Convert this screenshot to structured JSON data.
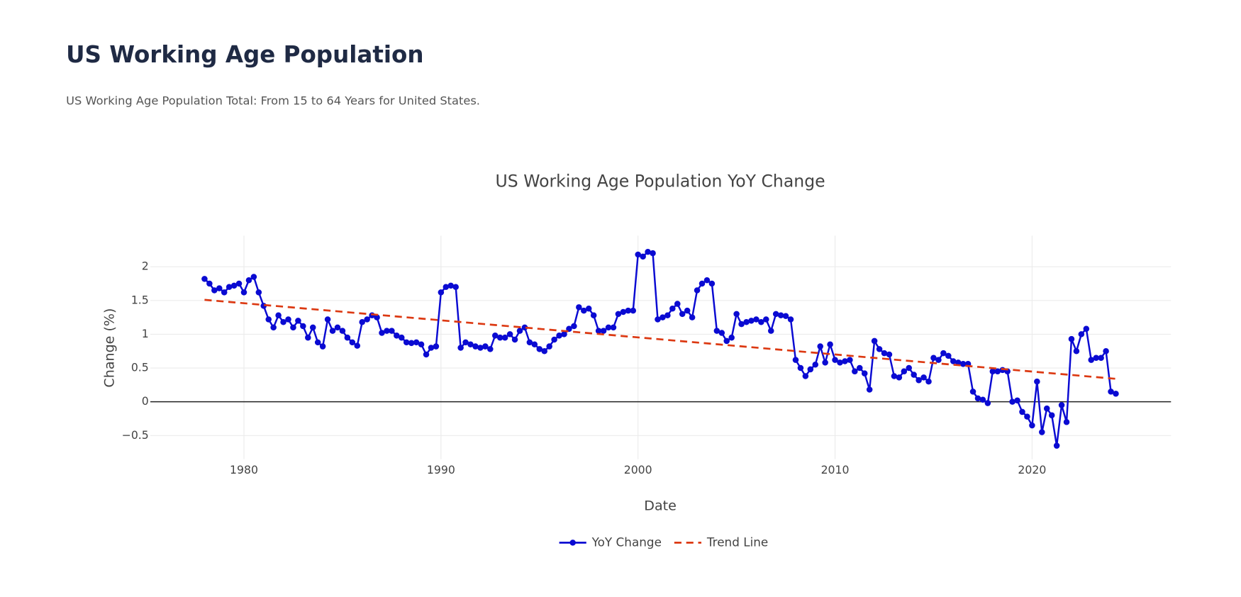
{
  "header": {
    "title": "US Working Age Population",
    "subtitle": "US Working Age Population Total: From 15 to 64 Years for United States."
  },
  "chart_data": {
    "type": "line",
    "title": "US Working Age Population YoY Change",
    "x_label": "Date",
    "y_label": "Change (%)",
    "xlim": [
      1975.25,
      2027.05
    ],
    "ylim": [
      -0.85,
      2.46
    ],
    "xticks": [
      1980,
      1990,
      2000,
      2010,
      2020
    ],
    "yticks": [
      {
        "value": -0.5,
        "label": "−0.5"
      },
      0,
      0.5,
      1,
      1.5,
      2
    ],
    "grid": true,
    "zeroline": true,
    "legend": "bottom",
    "series": [
      {
        "name": "YoY Change",
        "color": "#0a0ad2",
        "markers": true,
        "x": [
          1978,
          1978.25,
          1978.5,
          1978.75,
          1979,
          1979.25,
          1979.5,
          1979.75,
          1980,
          1980.25,
          1980.5,
          1980.75,
          1981,
          1981.25,
          1981.5,
          1981.75,
          1982,
          1982.25,
          1982.5,
          1982.75,
          1983,
          1983.25,
          1983.5,
          1983.75,
          1984,
          1984.25,
          1984.5,
          1984.75,
          1985,
          1985.25,
          1985.5,
          1985.75,
          1986,
          1986.25,
          1986.5,
          1986.75,
          1987,
          1987.25,
          1987.5,
          1987.75,
          1988,
          1988.25,
          1988.5,
          1988.75,
          1989,
          1989.25,
          1989.5,
          1989.75,
          1990,
          1990.25,
          1990.5,
          1990.75,
          1991,
          1991.25,
          1991.5,
          1991.75,
          1992,
          1992.25,
          1992.5,
          1992.75,
          1993,
          1993.25,
          1993.5,
          1993.75,
          1994,
          1994.25,
          1994.5,
          1994.75,
          1995,
          1995.25,
          1995.5,
          1995.75,
          1996,
          1996.25,
          1996.5,
          1996.75,
          1997,
          1997.25,
          1997.5,
          1997.75,
          1998,
          1998.25,
          1998.5,
          1998.75,
          1999,
          1999.25,
          1999.5,
          1999.75,
          2000,
          2000.25,
          2000.5,
          2000.75,
          2001,
          2001.25,
          2001.5,
          2001.75,
          2002,
          2002.25,
          2002.5,
          2002.75,
          2003,
          2003.25,
          2003.5,
          2003.75,
          2004,
          2004.25,
          2004.5,
          2004.75,
          2005,
          2005.25,
          2005.5,
          2005.75,
          2006,
          2006.25,
          2006.5,
          2006.75,
          2007,
          2007.25,
          2007.5,
          2007.75,
          2008,
          2008.25,
          2008.5,
          2008.75,
          2009,
          2009.25,
          2009.5,
          2009.75,
          2010,
          2010.25,
          2010.5,
          2010.75,
          2011,
          2011.25,
          2011.5,
          2011.75,
          2012,
          2012.25,
          2012.5,
          2012.75,
          2013,
          2013.25,
          2013.5,
          2013.75,
          2014,
          2014.25,
          2014.5,
          2014.75,
          2015,
          2015.25,
          2015.5,
          2015.75,
          2016,
          2016.25,
          2016.5,
          2016.75,
          2017,
          2017.25,
          2017.5,
          2017.75,
          2018,
          2018.25,
          2018.5,
          2018.75,
          2019,
          2019.25,
          2019.5,
          2019.75,
          2020,
          2020.25,
          2020.5,
          2020.75,
          2021,
          2021.25,
          2021.5,
          2021.75,
          2022,
          2022.25,
          2022.5,
          2022.75,
          2023,
          2023.25,
          2023.5,
          2023.75,
          2024,
          2024.25
        ],
        "values": [
          1.82,
          1.75,
          1.65,
          1.68,
          1.62,
          1.7,
          1.72,
          1.75,
          1.62,
          1.8,
          1.85,
          1.62,
          1.42,
          1.22,
          1.1,
          1.28,
          1.18,
          1.22,
          1.1,
          1.2,
          1.12,
          0.95,
          1.1,
          0.88,
          0.82,
          1.22,
          1.05,
          1.1,
          1.05,
          0.95,
          0.88,
          0.83,
          1.18,
          1.22,
          1.28,
          1.25,
          1.02,
          1.05,
          1.05,
          0.98,
          0.95,
          0.88,
          0.87,
          0.88,
          0.85,
          0.7,
          0.8,
          0.82,
          1.62,
          1.7,
          1.72,
          1.7,
          0.8,
          0.88,
          0.85,
          0.82,
          0.8,
          0.82,
          0.78,
          0.98,
          0.95,
          0.95,
          1.0,
          0.92,
          1.05,
          1.1,
          0.88,
          0.85,
          0.78,
          0.75,
          0.82,
          0.92,
          0.98,
          1.0,
          1.08,
          1.12,
          1.4,
          1.35,
          1.38,
          1.28,
          1.05,
          1.05,
          1.1,
          1.1,
          1.3,
          1.33,
          1.35,
          1.35,
          2.18,
          2.15,
          2.22,
          2.2,
          1.22,
          1.25,
          1.28,
          1.38,
          1.45,
          1.3,
          1.35,
          1.25,
          1.65,
          1.75,
          1.8,
          1.75,
          1.05,
          1.02,
          0.9,
          0.95,
          1.3,
          1.15,
          1.18,
          1.2,
          1.22,
          1.18,
          1.22,
          1.05,
          1.3,
          1.28,
          1.27,
          1.22,
          0.62,
          0.5,
          0.38,
          0.48,
          0.55,
          0.82,
          0.58,
          0.85,
          0.62,
          0.58,
          0.6,
          0.62,
          0.45,
          0.5,
          0.42,
          0.18,
          0.9,
          0.78,
          0.72,
          0.7,
          0.38,
          0.36,
          0.45,
          0.5,
          0.4,
          0.32,
          0.36,
          0.3,
          0.65,
          0.62,
          0.72,
          0.68,
          0.6,
          0.58,
          0.56,
          0.56,
          0.15,
          0.05,
          0.03,
          -0.02,
          0.45,
          0.45,
          0.47,
          0.45,
          0.0,
          0.02,
          -0.15,
          -0.22,
          -0.35,
          0.3,
          -0.45,
          -0.1,
          -0.2,
          -0.65,
          -0.05,
          -0.3,
          0.93,
          0.75,
          1.0,
          1.08,
          0.62,
          0.65,
          0.65,
          0.75,
          0.15,
          0.12
        ]
      },
      {
        "name": "Trend Line",
        "color": "#dc3912",
        "dash": "dash",
        "markers": false,
        "x": [
          1978,
          2024.25
        ],
        "values": [
          1.51,
          0.34
        ]
      }
    ]
  }
}
